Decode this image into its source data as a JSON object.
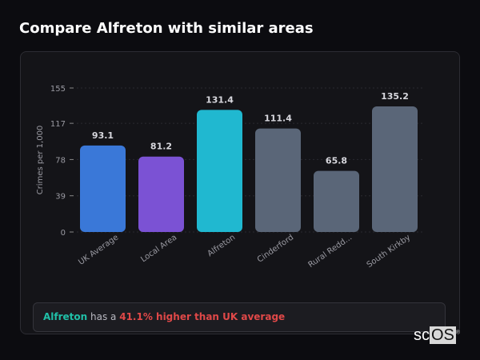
{
  "page": {
    "title": "Compare Alfreton with similar areas"
  },
  "chart_data": {
    "type": "bar",
    "categories": [
      "UK Average",
      "Local Area",
      "Alfreton",
      "Cinderford",
      "Rural Redd...",
      "South Kirkby"
    ],
    "values": [
      93.1,
      81.2,
      131.4,
      111.4,
      65.8,
      135.2
    ],
    "value_labels": [
      "93.1",
      "81.2",
      "131.4",
      "111.4",
      "65.8",
      "135.2"
    ],
    "colors": [
      "#3a78d8",
      "#7b52d4",
      "#20b8d0",
      "#5a6678",
      "#5a6678",
      "#5a6678"
    ],
    "ylabel": "Crimes per 1,000",
    "xlabel": "",
    "yticks": [
      0,
      39,
      78,
      117,
      155
    ],
    "ylim": [
      0,
      155
    ],
    "grid": true,
    "legend": "none"
  },
  "summary": {
    "area": "Alfreton",
    "connector": " has a ",
    "comparison": "41.1% higher than UK average"
  },
  "logo": {
    "text_a": "sc",
    "text_b": "OS",
    "mark": "®"
  }
}
